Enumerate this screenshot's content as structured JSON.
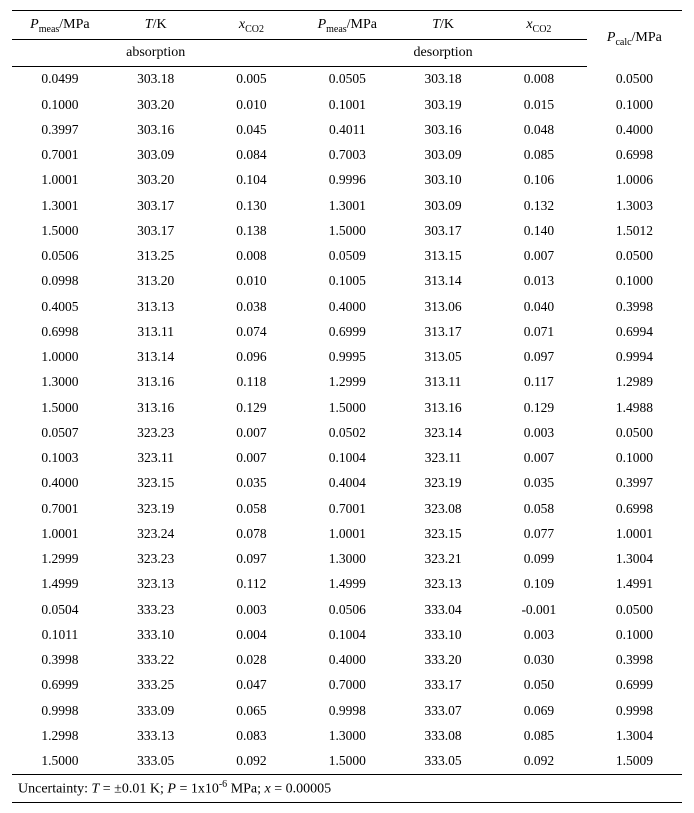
{
  "headers": {
    "pmeas_html": "<span class='it'>P</span><sub>meas</sub>/MPa",
    "tk_html": "<span class='it'>T</span>/K",
    "xco2_html": "<span class='it'>x</span><sub>CO2</sub>",
    "absorption": "absorption",
    "desorption": "desorption",
    "pcalc_html": "<span class='it'>P</span><sub>calc</sub>/MPa"
  },
  "rows": [
    [
      "0.0499",
      "303.18",
      "0.005",
      "0.0505",
      "303.18",
      "0.008",
      "0.0500"
    ],
    [
      "0.1000",
      "303.20",
      "0.010",
      "0.1001",
      "303.19",
      "0.015",
      "0.1000"
    ],
    [
      "0.3997",
      "303.16",
      "0.045",
      "0.4011",
      "303.16",
      "0.048",
      "0.4000"
    ],
    [
      "0.7001",
      "303.09",
      "0.084",
      "0.7003",
      "303.09",
      "0.085",
      "0.6998"
    ],
    [
      "1.0001",
      "303.20",
      "0.104",
      "0.9996",
      "303.10",
      "0.106",
      "1.0006"
    ],
    [
      "1.3001",
      "303.17",
      "0.130",
      "1.3001",
      "303.09",
      "0.132",
      "1.3003"
    ],
    [
      "1.5000",
      "303.17",
      "0.138",
      "1.5000",
      "303.17",
      "0.140",
      "1.5012"
    ],
    [
      "0.0506",
      "313.25",
      "0.008",
      "0.0509",
      "313.15",
      "0.007",
      "0.0500"
    ],
    [
      "0.0998",
      "313.20",
      "0.010",
      "0.1005",
      "313.14",
      "0.013",
      "0.1000"
    ],
    [
      "0.4005",
      "313.13",
      "0.038",
      "0.4000",
      "313.06",
      "0.040",
      "0.3998"
    ],
    [
      "0.6998",
      "313.11",
      "0.074",
      "0.6999",
      "313.17",
      "0.071",
      "0.6994"
    ],
    [
      "1.0000",
      "313.14",
      "0.096",
      "0.9995",
      "313.05",
      "0.097",
      "0.9994"
    ],
    [
      "1.3000",
      "313.16",
      "0.118",
      "1.2999",
      "313.11",
      "0.117",
      "1.2989"
    ],
    [
      "1.5000",
      "313.16",
      "0.129",
      "1.5000",
      "313.16",
      "0.129",
      "1.4988"
    ],
    [
      "0.0507",
      "323.23",
      "0.007",
      "0.0502",
      "323.14",
      "0.003",
      "0.0500"
    ],
    [
      "0.1003",
      "323.11",
      "0.007",
      "0.1004",
      "323.11",
      "0.007",
      "0.1000"
    ],
    [
      "0.4000",
      "323.15",
      "0.035",
      "0.4004",
      "323.19",
      "0.035",
      "0.3997"
    ],
    [
      "0.7001",
      "323.19",
      "0.058",
      "0.7001",
      "323.08",
      "0.058",
      "0.6998"
    ],
    [
      "1.0001",
      "323.24",
      "0.078",
      "1.0001",
      "323.15",
      "0.077",
      "1.0001"
    ],
    [
      "1.2999",
      "323.23",
      "0.097",
      "1.3000",
      "323.21",
      "0.099",
      "1.3004"
    ],
    [
      "1.4999",
      "323.13",
      "0.112",
      "1.4999",
      "323.13",
      "0.109",
      "1.4991"
    ],
    [
      "0.0504",
      "333.23",
      "0.003",
      "0.0506",
      "333.04",
      "-0.001",
      "0.0500"
    ],
    [
      "0.1011",
      "333.10",
      "0.004",
      "0.1004",
      "333.10",
      "0.003",
      "0.1000"
    ],
    [
      "0.3998",
      "333.22",
      "0.028",
      "0.4000",
      "333.20",
      "0.030",
      "0.3998"
    ],
    [
      "0.6999",
      "333.25",
      "0.047",
      "0.7000",
      "333.17",
      "0.050",
      "0.6999"
    ],
    [
      "0.9998",
      "333.09",
      "0.065",
      "0.9998",
      "333.07",
      "0.069",
      "0.9998"
    ],
    [
      "1.2998",
      "333.13",
      "0.083",
      "1.3000",
      "333.08",
      "0.085",
      "1.3004"
    ],
    [
      "1.5000",
      "333.05",
      "0.092",
      "1.5000",
      "333.05",
      "0.092",
      "1.5009"
    ]
  ],
  "footer_html": "Uncertainty: <span class='it'>T</span> = ±0.01 K; <span class='it'>P</span> = 1x10<sup>-6</sup> MPa; <span class='it'>x</span> = 0.00005",
  "col_widths": [
    "14.3%",
    "14.3%",
    "14.3%",
    "14.3%",
    "14.3%",
    "14.3%",
    "14.2%"
  ]
}
